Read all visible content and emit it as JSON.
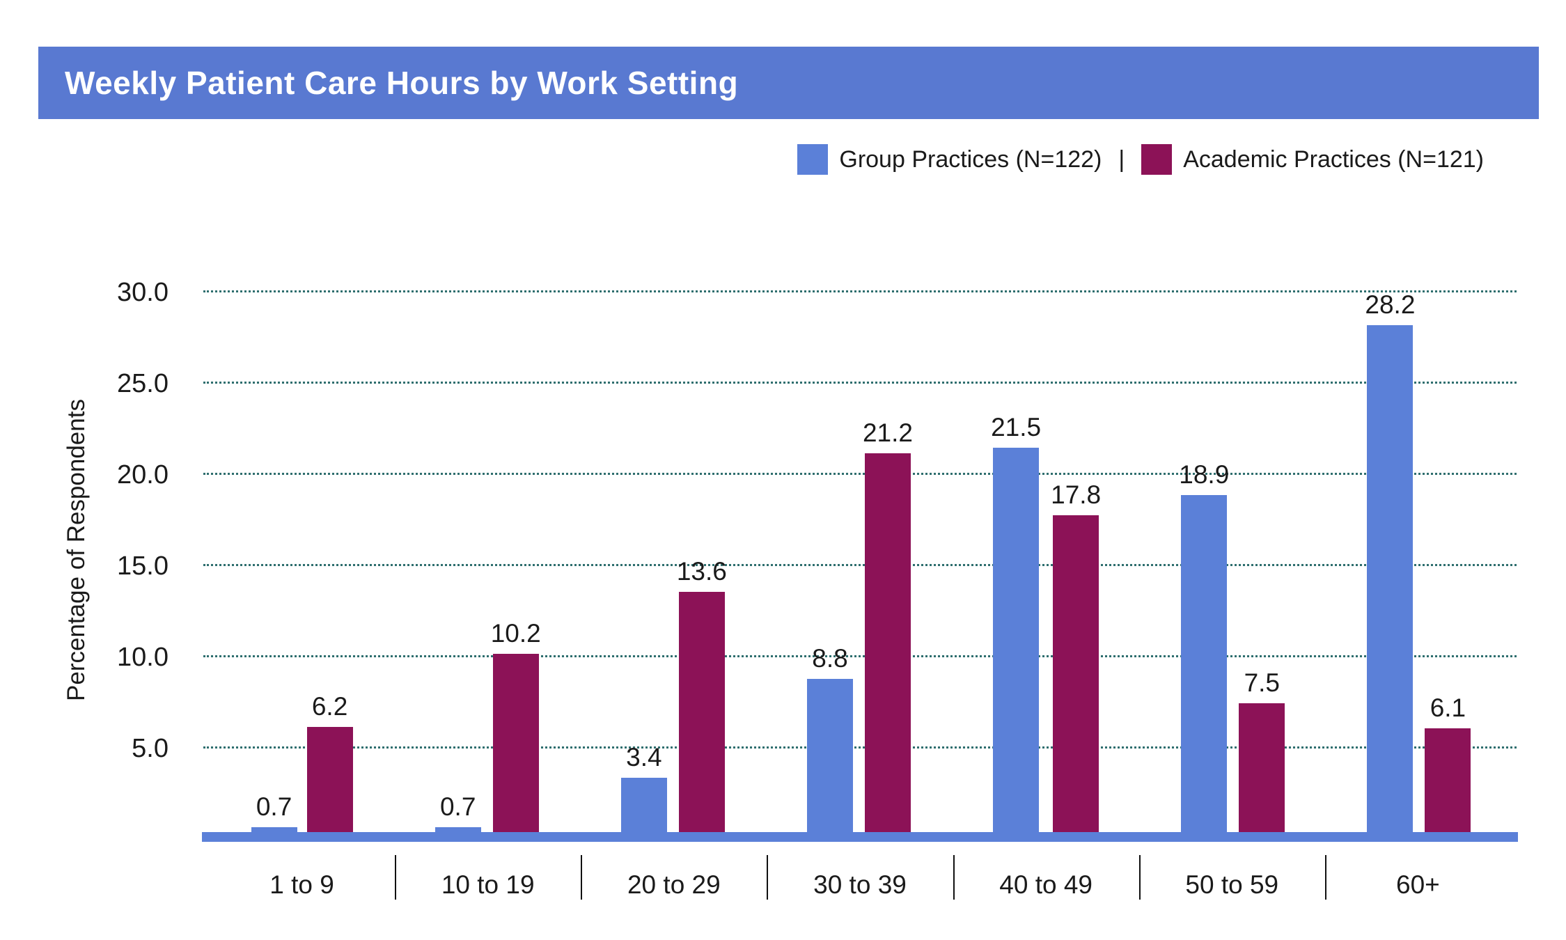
{
  "title": {
    "text": "Weekly Patient Care Hours by Work Setting"
  },
  "legend": {
    "items": [
      {
        "label": "Group Practices (N=122)",
        "color": "#5b80d8"
      },
      {
        "label": "Academic Practices (N=121)",
        "color": "#8c1257"
      }
    ],
    "separator": "|"
  },
  "y_axis": {
    "title": "Percentage of Respondents"
  },
  "chart_data": {
    "type": "bar",
    "title": "Weekly Patient Care Hours by Work Setting",
    "categories": [
      "1 to 9",
      "10 to 19",
      "20 to 29",
      "30 to 39",
      "40 to 49",
      "50 to 59",
      "60+"
    ],
    "series": [
      {
        "name": "Group Practices (N=122)",
        "color": "#5b80d8",
        "values": [
          0.7,
          0.7,
          3.4,
          8.8,
          21.5,
          18.9,
          28.2
        ]
      },
      {
        "name": "Academic Practices (N=121)",
        "color": "#8c1257",
        "values": [
          6.2,
          10.2,
          13.6,
          21.2,
          17.8,
          7.5,
          6.1
        ]
      }
    ],
    "xlabel": "",
    "ylabel": "Percentage of Respondents",
    "ylim": [
      0,
      30
    ],
    "yticks": [
      5,
      10,
      15,
      20,
      25,
      30
    ],
    "ytick_labels": [
      "5.0",
      "10.0",
      "15.0",
      "20.0",
      "25.0",
      "30.0"
    ],
    "grid": "horizontal-dotted",
    "legend_position": "top-right",
    "value_labels": true
  },
  "colors": {
    "title_bg": "#5979d1",
    "title_text": "#ffffff",
    "bar_blue": "#5b80d8",
    "bar_maroon": "#8c1257",
    "axis_line": "#5b80d8",
    "gridline": "#2e6e6e",
    "text": "#1a1a1a"
  }
}
